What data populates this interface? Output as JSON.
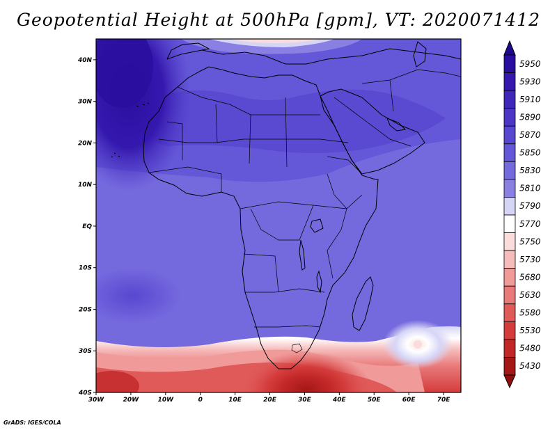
{
  "title": "Geopotential Height at 500hPa [gpm], VT: 2020071412",
  "credit": "GrADS: IGES/COLA",
  "map": {
    "variable": "500hPa geopotential height",
    "units": "gpm",
    "valid_time": "2020071412",
    "lon_range": [
      -30,
      75
    ],
    "lat_range": [
      -40,
      45
    ],
    "lon_ticks": [
      {
        "value": -30,
        "label": "30W"
      },
      {
        "value": -20,
        "label": "20W"
      },
      {
        "value": -10,
        "label": "10W"
      },
      {
        "value": 0,
        "label": "0"
      },
      {
        "value": 10,
        "label": "10E"
      },
      {
        "value": 20,
        "label": "20E"
      },
      {
        "value": 30,
        "label": "30E"
      },
      {
        "value": 40,
        "label": "40E"
      },
      {
        "value": 50,
        "label": "50E"
      },
      {
        "value": 60,
        "label": "60E"
      },
      {
        "value": 70,
        "label": "70E"
      }
    ],
    "lat_ticks": [
      {
        "value": 40,
        "label": "40N"
      },
      {
        "value": 30,
        "label": "30N"
      },
      {
        "value": 20,
        "label": "20N"
      },
      {
        "value": 10,
        "label": "10N"
      },
      {
        "value": 0,
        "label": "EQ"
      },
      {
        "value": -10,
        "label": "10S"
      },
      {
        "value": -20,
        "label": "20S"
      },
      {
        "value": -30,
        "label": "30S"
      },
      {
        "value": -40,
        "label": "40S"
      }
    ],
    "features": {
      "high_center_lonlat": [
        -28,
        38
      ],
      "low_center_lonlat": [
        30,
        -40
      ],
      "cut_off_low_lonlat": [
        63,
        -29
      ]
    }
  },
  "colorbar": {
    "levels": [
      {
        "value": "5950",
        "color": "#2a0ea0"
      },
      {
        "value": "5930",
        "color": "#3518ae"
      },
      {
        "value": "5910",
        "color": "#4126ba"
      },
      {
        "value": "5890",
        "color": "#4c36c6"
      },
      {
        "value": "5870",
        "color": "#5847d0"
      },
      {
        "value": "5850",
        "color": "#6558d8"
      },
      {
        "value": "5830",
        "color": "#7569de"
      },
      {
        "value": "5810",
        "color": "#8a80e4"
      },
      {
        "value": "5790",
        "color": "#d6d5f6"
      },
      {
        "value": "5770",
        "color": "#ffffff"
      },
      {
        "value": "5750",
        "color": "#fbdcdc"
      },
      {
        "value": "5730",
        "color": "#f6bcbc"
      },
      {
        "value": "5680",
        "color": "#f09a9a"
      },
      {
        "value": "5630",
        "color": "#e97a7a"
      },
      {
        "value": "5580",
        "color": "#e05a5a"
      },
      {
        "value": "5530",
        "color": "#d43c3c"
      },
      {
        "value": "5480",
        "color": "#c22727"
      },
      {
        "value": "5430",
        "color": "#a51818"
      }
    ],
    "top_arrow_color": "#1f0890",
    "bottom_arrow_color": "#8f0e0e"
  }
}
